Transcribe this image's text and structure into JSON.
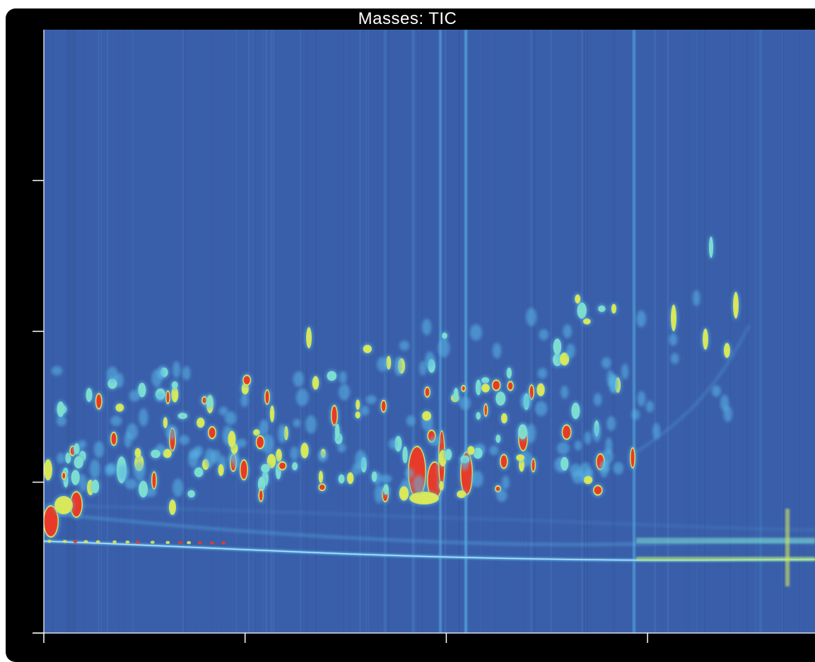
{
  "chart_data": {
    "type": "heatmap",
    "title": "Masses:  TIC",
    "xlabel": "",
    "ylabel": "",
    "x_tick_count": 5,
    "y_tick_count": 4,
    "tick_labels_shown": false,
    "colormap": [
      "#3a5faa",
      "#48a8e0",
      "#7fe0d0",
      "#d8e85a",
      "#e83a2a"
    ],
    "colors": {
      "background": "#3a5faa",
      "frame": "#000000",
      "title_text": "#ffffff",
      "axis": "#ffffff",
      "band": "#5ab8e8",
      "peak_hot": "#e83a2a",
      "peak_warm": "#d8e85a",
      "peak_cool": "#7fe0d0"
    },
    "grid": false,
    "legend": "none"
  }
}
